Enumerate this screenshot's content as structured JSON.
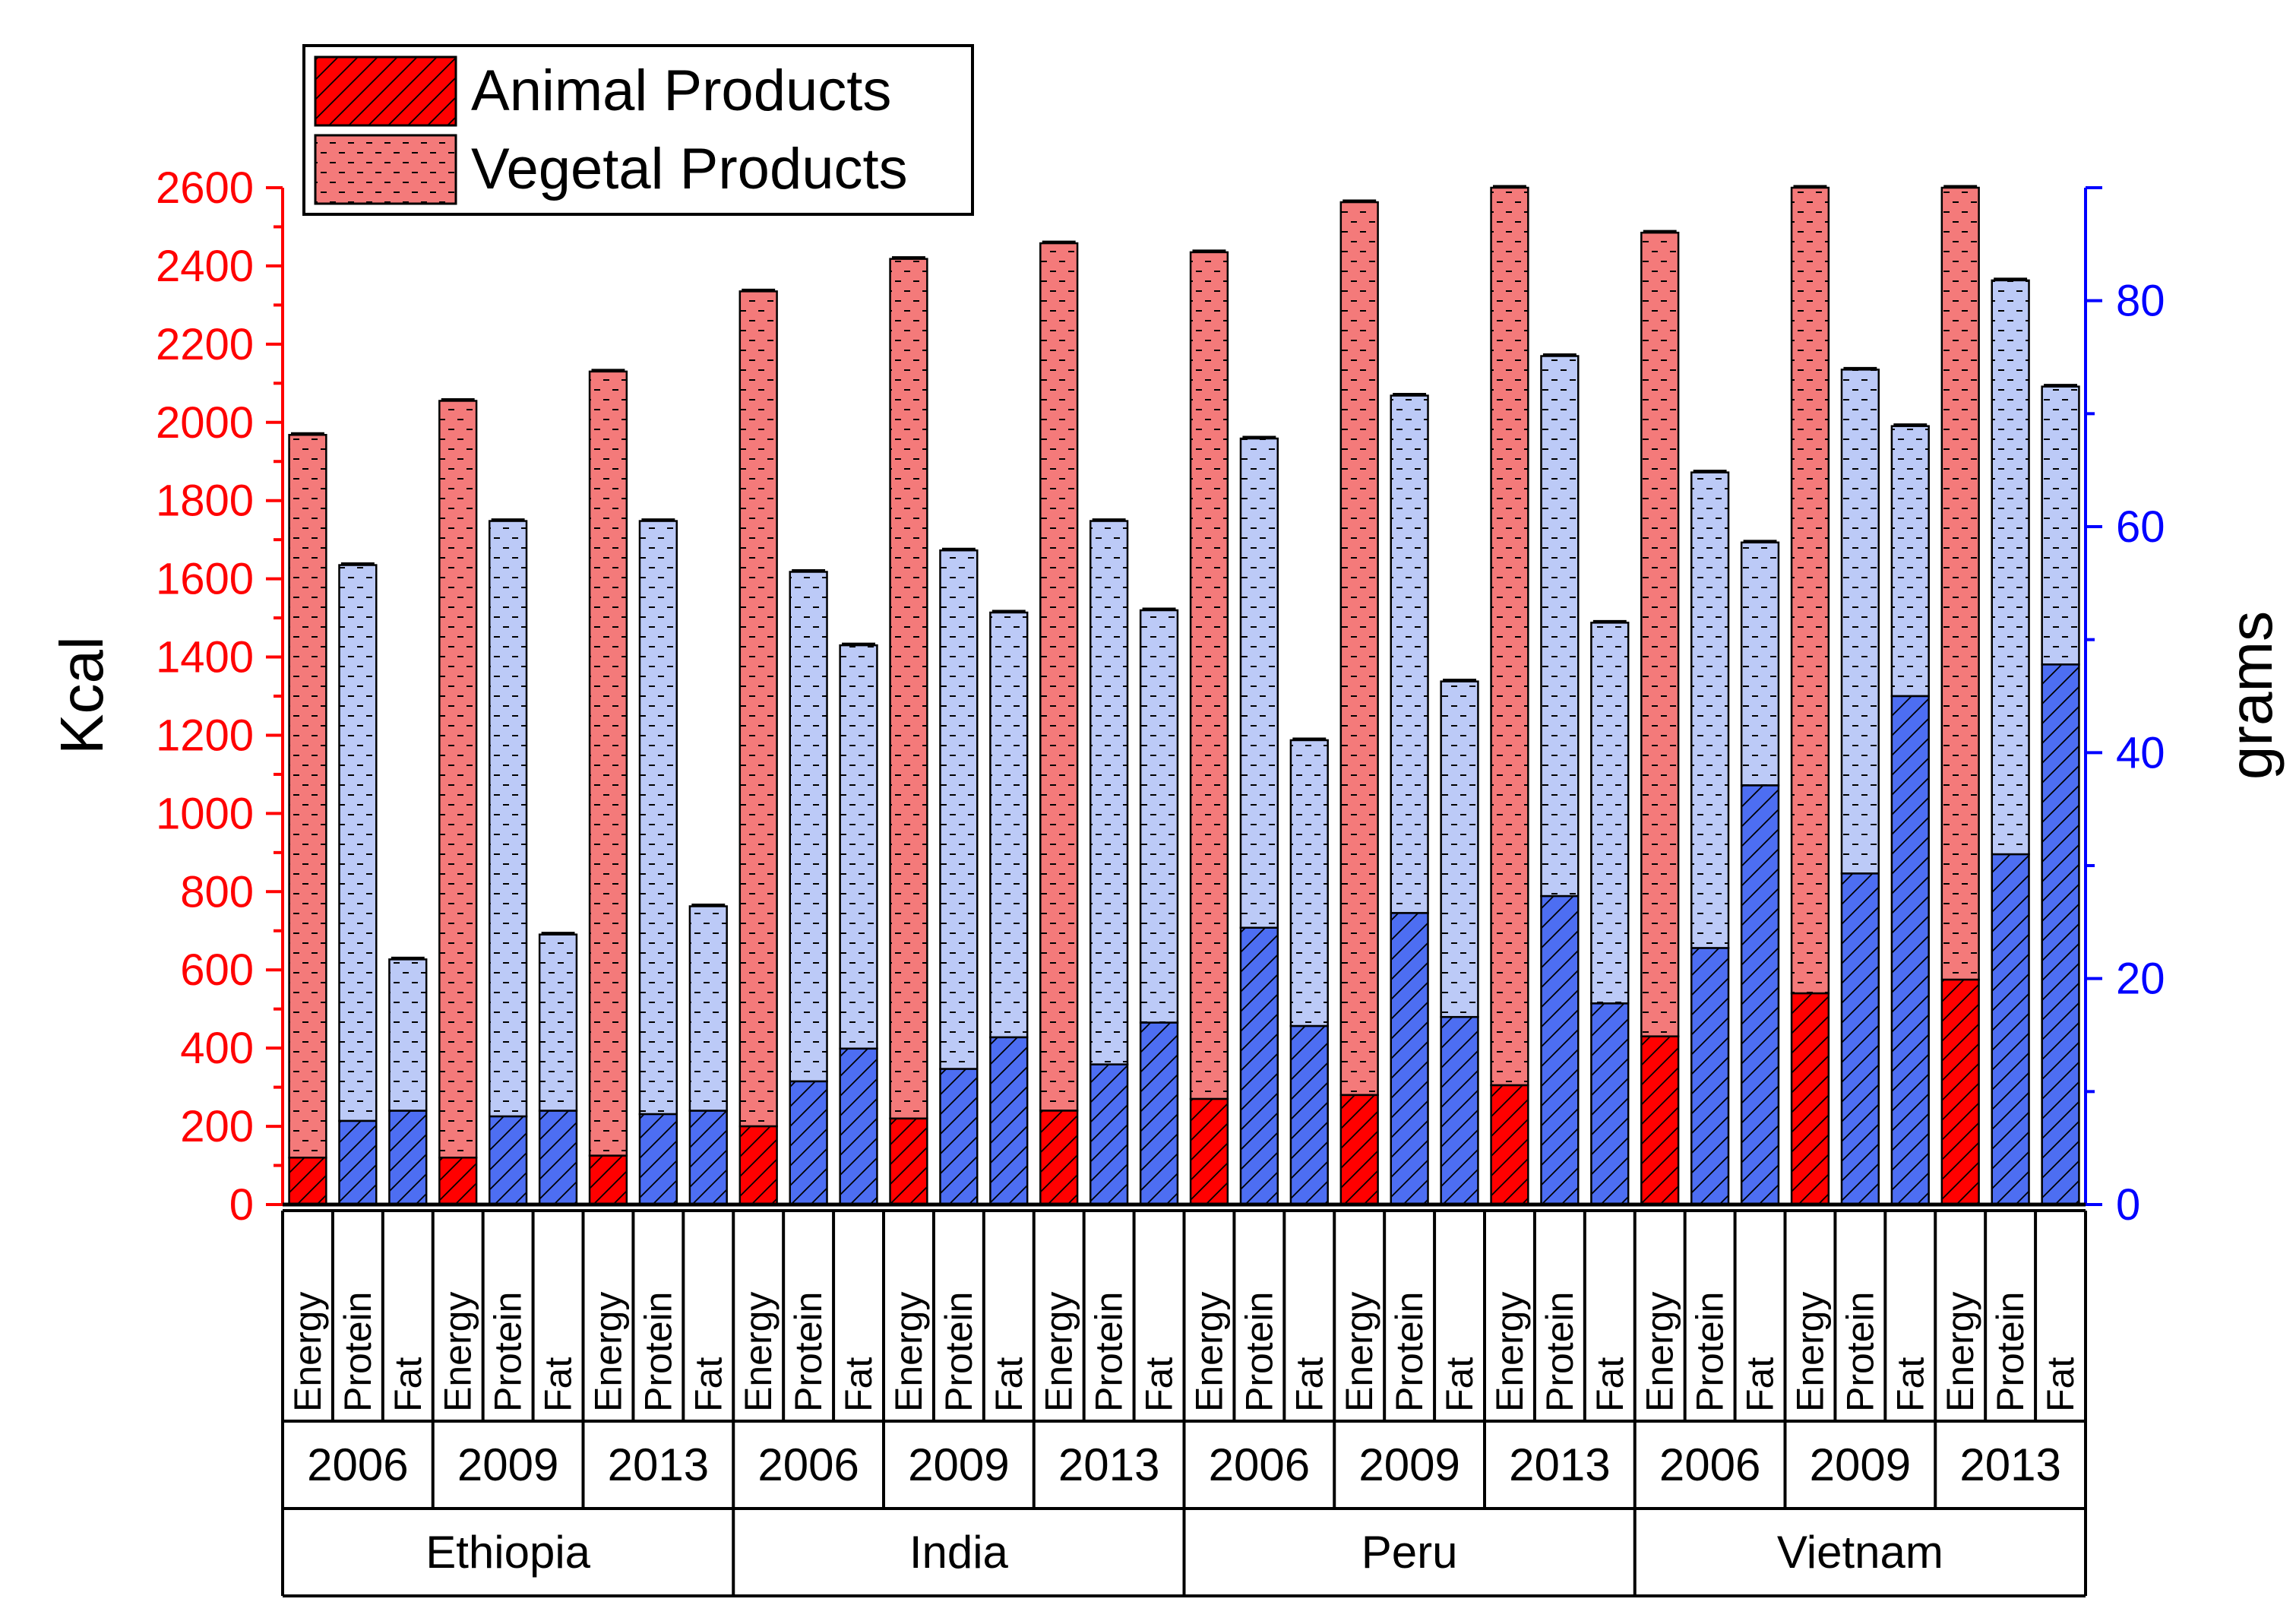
{
  "chart_data": {
    "type": "bar",
    "stacked": true,
    "left_axis": {
      "label": "Kcal",
      "range": [
        0,
        2600
      ],
      "ticks": [
        "0",
        "200",
        "400",
        "600",
        "800",
        "1000",
        "1200",
        "1400",
        "1600",
        "1800",
        "2000",
        "2200",
        "2400",
        "2600"
      ],
      "color": "#ff0000"
    },
    "right_axis": {
      "label": "grams",
      "range": [
        0,
        90
      ],
      "ticks": [
        "0",
        "20",
        "40",
        "60",
        "80"
      ],
      "color": "#0000ff"
    },
    "legend": {
      "placement": "top-left",
      "items": [
        {
          "label": "Animal Products",
          "pattern": "hatch"
        },
        {
          "label": "Vegetal Products",
          "pattern": "dash"
        }
      ]
    },
    "colors": {
      "energy_animal": "#ff0000",
      "energy_vegetal": "#f47a7a",
      "nutrient_animal": "#4d6ef2",
      "nutrient_vegetal": "#bccaf7"
    },
    "countries": [
      {
        "name": "Ethiopia",
        "years": [
          {
            "year": "2006",
            "bars": [
              {
                "metric": "Energy",
                "axis": "left",
                "animal": 120,
                "total": 1968
              },
              {
                "metric": "Protein",
                "axis": "right",
                "animal": 7.4,
                "total": 56.6
              },
              {
                "metric": "Fat",
                "axis": "right",
                "animal": 8.3,
                "total": 21.7
              }
            ]
          },
          {
            "year": "2009",
            "bars": [
              {
                "metric": "Energy",
                "axis": "left",
                "animal": 120,
                "total": 2055
              },
              {
                "metric": "Protein",
                "axis": "right",
                "animal": 7.8,
                "total": 60.5
              },
              {
                "metric": "Fat",
                "axis": "right",
                "animal": 8.3,
                "total": 23.9
              }
            ]
          },
          {
            "year": "2013",
            "bars": [
              {
                "metric": "Energy",
                "axis": "left",
                "animal": 125,
                "total": 2130
              },
              {
                "metric": "Protein",
                "axis": "right",
                "animal": 8.0,
                "total": 60.5
              },
              {
                "metric": "Fat",
                "axis": "right",
                "animal": 8.3,
                "total": 26.4
              }
            ]
          }
        ]
      },
      {
        "name": "India",
        "years": [
          {
            "year": "2006",
            "bars": [
              {
                "metric": "Energy",
                "axis": "left",
                "animal": 200,
                "total": 2335
              },
              {
                "metric": "Protein",
                "axis": "right",
                "animal": 10.9,
                "total": 56.0
              },
              {
                "metric": "Fat",
                "axis": "right",
                "animal": 13.8,
                "total": 49.5
              }
            ]
          },
          {
            "year": "2009",
            "bars": [
              {
                "metric": "Energy",
                "axis": "left",
                "animal": 220,
                "total": 2418
              },
              {
                "metric": "Protein",
                "axis": "right",
                "animal": 12.0,
                "total": 57.9
              },
              {
                "metric": "Fat",
                "axis": "right",
                "animal": 14.8,
                "total": 52.4
              }
            ]
          },
          {
            "year": "2013",
            "bars": [
              {
                "metric": "Energy",
                "axis": "left",
                "animal": 240,
                "total": 2458
              },
              {
                "metric": "Protein",
                "axis": "right",
                "animal": 12.4,
                "total": 60.5
              },
              {
                "metric": "Fat",
                "axis": "right",
                "animal": 16.1,
                "total": 52.6
              }
            ]
          }
        ]
      },
      {
        "name": "Peru",
        "years": [
          {
            "year": "2006",
            "bars": [
              {
                "metric": "Energy",
                "axis": "left",
                "animal": 270,
                "total": 2435
              },
              {
                "metric": "Protein",
                "axis": "right",
                "animal": 24.5,
                "total": 67.8
              },
              {
                "metric": "Fat",
                "axis": "right",
                "animal": 15.8,
                "total": 41.1
              }
            ]
          },
          {
            "year": "2009",
            "bars": [
              {
                "metric": "Energy",
                "axis": "left",
                "animal": 280,
                "total": 2563
              },
              {
                "metric": "Protein",
                "axis": "right",
                "animal": 25.8,
                "total": 71.6
              },
              {
                "metric": "Fat",
                "axis": "right",
                "animal": 16.6,
                "total": 46.3
              }
            ]
          },
          {
            "year": "2013",
            "bars": [
              {
                "metric": "Energy",
                "axis": "left",
                "animal": 305,
                "total": 2600
              },
              {
                "metric": "Protein",
                "axis": "right",
                "animal": 27.3,
                "total": 75.1
              },
              {
                "metric": "Fat",
                "axis": "right",
                "animal": 17.8,
                "total": 51.5
              }
            ]
          }
        ]
      },
      {
        "name": "Vietnam",
        "years": [
          {
            "year": "2006",
            "bars": [
              {
                "metric": "Energy",
                "axis": "left",
                "animal": 430,
                "total": 2485
              },
              {
                "metric": "Protein",
                "axis": "right",
                "animal": 22.7,
                "total": 64.8
              },
              {
                "metric": "Fat",
                "axis": "right",
                "animal": 37.1,
                "total": 58.6
              }
            ]
          },
          {
            "year": "2009",
            "bars": [
              {
                "metric": "Energy",
                "axis": "left",
                "animal": 540,
                "total": 2600
              },
              {
                "metric": "Protein",
                "axis": "right",
                "animal": 29.3,
                "total": 73.9
              },
              {
                "metric": "Fat",
                "axis": "right",
                "animal": 45.0,
                "total": 68.9
              }
            ]
          },
          {
            "year": "2013",
            "bars": [
              {
                "metric": "Energy",
                "axis": "left",
                "animal": 575,
                "total": 2600
              },
              {
                "metric": "Protein",
                "axis": "right",
                "animal": 31.0,
                "total": 81.8
              },
              {
                "metric": "Fat",
                "axis": "right",
                "animal": 47.8,
                "total": 72.4
              }
            ]
          }
        ]
      }
    ]
  }
}
